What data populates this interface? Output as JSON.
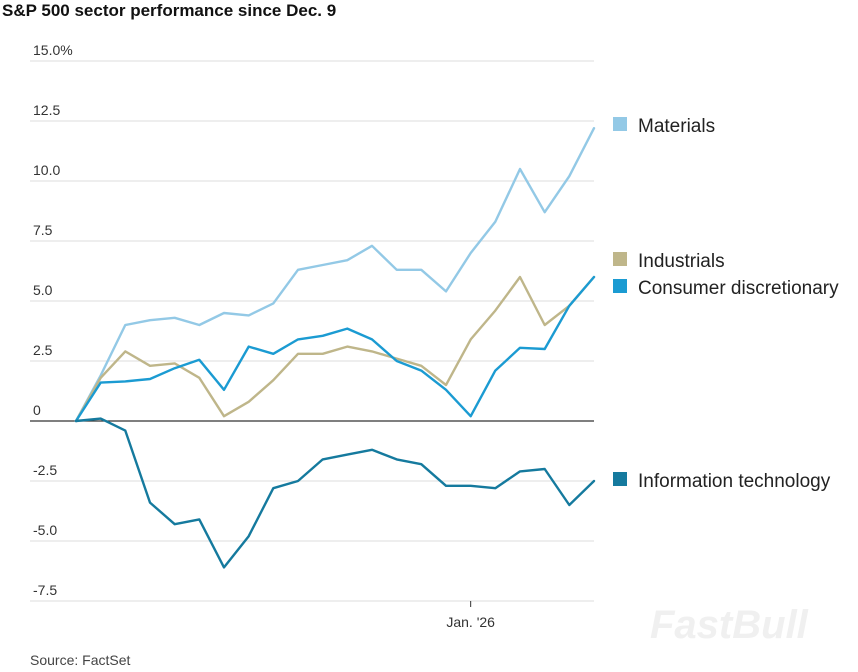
{
  "chart_data": {
    "type": "line",
    "title": "S&P 500 sector performance since Dec. 9",
    "source": "Source: FactSet",
    "watermark": "FastBull",
    "ylim": [
      -7.5,
      15
    ],
    "yticks": [
      {
        "value": 15,
        "label": "15.0%"
      },
      {
        "value": 12.5,
        "label": "12.5"
      },
      {
        "value": 10,
        "label": "10.0"
      },
      {
        "value": 7.5,
        "label": "7.5"
      },
      {
        "value": 5,
        "label": "5.0"
      },
      {
        "value": 2.5,
        "label": "2.5"
      },
      {
        "value": 0,
        "label": "0"
      },
      {
        "value": -2.5,
        "label": "-2.5"
      },
      {
        "value": -5,
        "label": "-5.0"
      },
      {
        "value": -7.5,
        "label": "-7.5"
      }
    ],
    "xticks": [
      {
        "index": 16,
        "label": "Jan. '26"
      }
    ],
    "series": [
      {
        "name": "Materials",
        "color": "#93c9e6",
        "values": [
          0,
          1.9,
          4.0,
          4.2,
          4.3,
          4.0,
          4.5,
          4.4,
          4.9,
          6.3,
          6.5,
          6.7,
          7.3,
          6.3,
          6.3,
          5.4,
          7.0,
          8.3,
          10.5,
          8.7,
          10.2,
          12.2
        ]
      },
      {
        "name": "Industrials",
        "color": "#bfb68a",
        "values": [
          0,
          1.8,
          2.9,
          2.3,
          2.4,
          1.8,
          0.2,
          0.8,
          1.7,
          2.8,
          2.8,
          3.1,
          2.9,
          2.6,
          2.3,
          1.5,
          3.4,
          4.6,
          6.0,
          4.0,
          4.8,
          6.0
        ]
      },
      {
        "name": "Consumer discretionary",
        "color": "#1b9bd2",
        "values": [
          0,
          1.6,
          1.65,
          1.75,
          2.2,
          2.55,
          1.3,
          3.1,
          2.8,
          3.4,
          3.55,
          3.85,
          3.4,
          2.5,
          2.1,
          1.3,
          0.2,
          2.1,
          3.05,
          3.0,
          4.8,
          6.0
        ]
      },
      {
        "name": "Information technology",
        "color": "#157a9e",
        "values": [
          0,
          0.1,
          -0.4,
          -3.4,
          -4.3,
          -4.1,
          -6.1,
          -4.8,
          -2.8,
          -2.5,
          -1.6,
          -1.4,
          -1.2,
          -1.6,
          -1.8,
          -2.7,
          -2.7,
          -2.8,
          -2.1,
          -2.0,
          -3.5,
          -2.5
        ]
      }
    ]
  }
}
